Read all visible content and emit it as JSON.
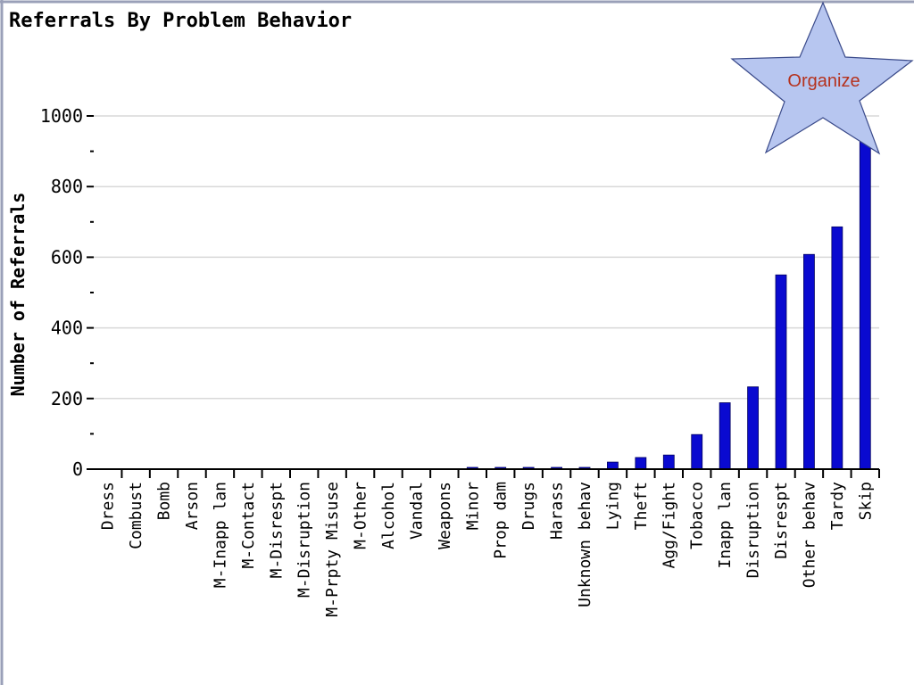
{
  "chart_data": {
    "type": "bar",
    "title": "Referrals By Problem Behavior",
    "xlabel": "",
    "ylabel": "Number of Referrals",
    "ylim": [
      0,
      1000
    ],
    "yticks": [
      0,
      200,
      400,
      600,
      800,
      1000
    ],
    "grid": true,
    "categories": [
      "Dress",
      "Combust",
      "Bomb",
      "Arson",
      "M-Inapp lan",
      "M-Contact",
      "M-Disrespt",
      "M-Disruption",
      "M-Prpty Misuse",
      "M-Other",
      "Alcohol",
      "Vandal",
      "Weapons",
      "Minor",
      "Prop dam",
      "Drugs",
      "Harass",
      "Unknown behav",
      "Lying",
      "Theft",
      "Agg/Fight",
      "Tobacco",
      "Inapp lan",
      "Disruption",
      "Disrespt",
      "Other behav",
      "Tardy",
      "Skip"
    ],
    "values": [
      0,
      0,
      0,
      0,
      0,
      0,
      0,
      0,
      0,
      0,
      0,
      0,
      0,
      5,
      5,
      5,
      5,
      5,
      20,
      33,
      40,
      98,
      188,
      233,
      550,
      608,
      686,
      930
    ],
    "bar_color": "#0a0ad0"
  },
  "callout": {
    "label": "Organize",
    "icon": "star-icon",
    "fill_color": "#b7c6f0",
    "text_color": "#b5321e"
  }
}
